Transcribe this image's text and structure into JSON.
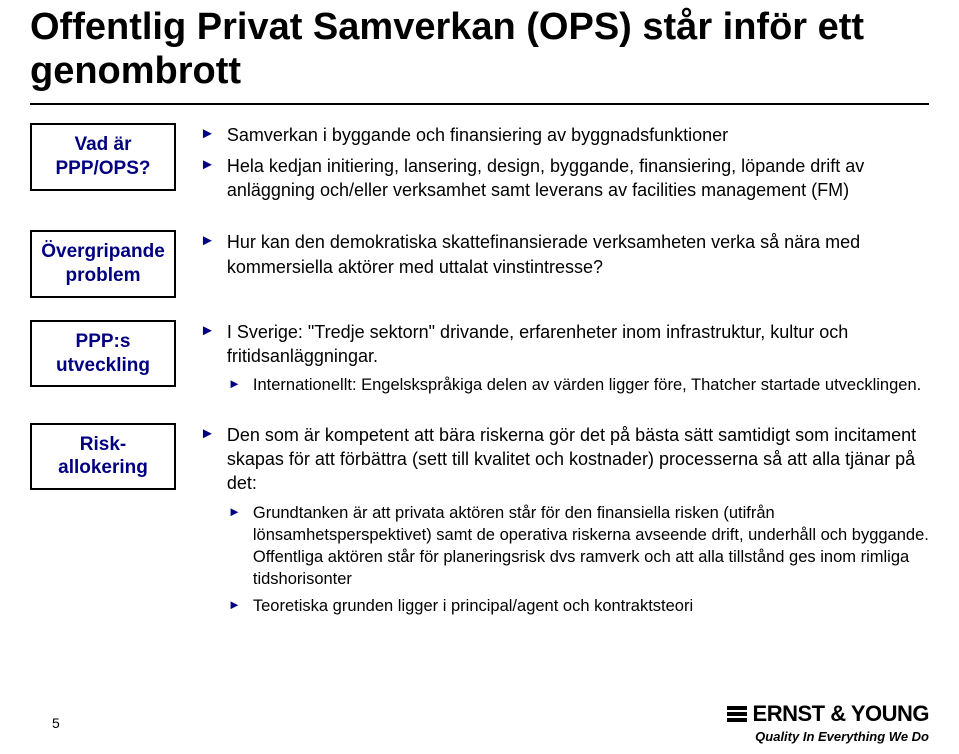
{
  "title": "Offentlig Privat Samverkan (OPS) står inför ett genombrott",
  "colors": {
    "accent": "#000080",
    "text": "#000000",
    "rule": "#000000",
    "background": "#ffffff"
  },
  "sections": [
    {
      "label": "Vad är PPP/OPS?",
      "bullets": [
        {
          "level": 1,
          "text": "Samverkan i byggande och finansiering av byggnadsfunktioner"
        },
        {
          "level": 1,
          "text": "Hela kedjan initiering, lansering, design, byggande, finansiering, löpande drift av anläggning och/eller verksamhet samt leverans av facilities management (FM)"
        }
      ]
    },
    {
      "label": "Övergripande problem",
      "bullets": [
        {
          "level": 1,
          "text": "Hur kan den demokratiska skattefinansierade verksamheten verka så nära med kommersiella aktörer med uttalat vinstintresse?"
        }
      ]
    },
    {
      "label": "PPP:s utveckling",
      "bullets": [
        {
          "level": 1,
          "text": "I Sverige: \"Tredje sektorn\" drivande, erfarenheter inom infrastruktur, kultur och fritidsanläggningar."
        },
        {
          "level": 2,
          "text": "Internationellt: Engelskspråkiga delen av värden ligger före, Thatcher startade utvecklingen."
        }
      ]
    },
    {
      "label": "Risk-allokering",
      "bullets": [
        {
          "level": 1,
          "text": "Den som är kompetent att bära riskerna gör det på bästa sätt samtidigt som incitament skapas för att förbättra (sett till kvalitet och kostnader) processerna så att alla tjänar på det:"
        },
        {
          "level": 2,
          "text": "Grundtanken är att privata aktören står för den finansiella risken (utifrån lönsamhetsperspektivet) samt de operativa riskerna avseende drift, underhåll och byggande. Offentliga aktören står för planeringsrisk dvs ramverk och att alla tillstånd ges inom rimliga tidshorisonter"
        },
        {
          "level": 2,
          "text": "Teoretiska grunden ligger i principal/agent och kontraktsteori"
        }
      ]
    }
  ],
  "footer": {
    "page_number": "5",
    "brand_name": "ERNST & YOUNG",
    "brand_tagline": "Quality In Everything We Do"
  }
}
